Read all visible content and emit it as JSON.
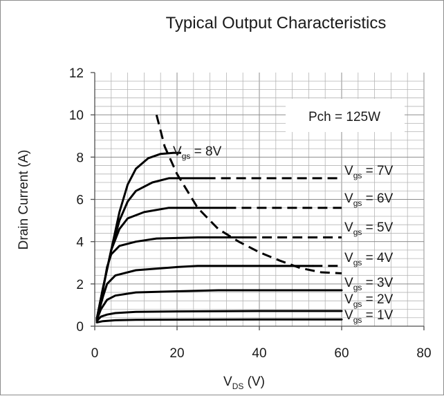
{
  "chart_data": {
    "type": "line",
    "title": "Typical Output Characteristics",
    "xlabel_main": "V",
    "xlabel_sub": "DS",
    "xlabel_unit": " (V)",
    "ylabel": "Drain Current (A)",
    "xlim": [
      0,
      80
    ],
    "ylim": [
      0,
      12
    ],
    "xticks": [
      "0",
      "20",
      "40",
      "60",
      "80"
    ],
    "yticks": [
      "0",
      "2",
      "4",
      "6",
      "8",
      "10",
      "12"
    ],
    "grid": true,
    "annotation": "Pch = 125W",
    "series": [
      {
        "label_main": "V",
        "label_sub": "gs",
        "label_value": " = 1V",
        "solid": [
          [
            0.5,
            0.18
          ],
          [
            2,
            0.24
          ],
          [
            5,
            0.28
          ],
          [
            10,
            0.3
          ],
          [
            20,
            0.31
          ],
          [
            40,
            0.32
          ],
          [
            60,
            0.32
          ]
        ],
        "dashed": []
      },
      {
        "label_main": "V",
        "label_sub": "gs",
        "label_value": " = 2V",
        "solid": [
          [
            0.5,
            0.25
          ],
          [
            1.5,
            0.45
          ],
          [
            3,
            0.55
          ],
          [
            5,
            0.62
          ],
          [
            10,
            0.68
          ],
          [
            20,
            0.7
          ],
          [
            40,
            0.72
          ],
          [
            60,
            0.72
          ]
        ],
        "dashed": []
      },
      {
        "label_main": "V",
        "label_sub": "gs",
        "label_value": " = 3V",
        "solid": [
          [
            0.5,
            0.3
          ],
          [
            1.5,
            0.8
          ],
          [
            3,
            1.25
          ],
          [
            5,
            1.45
          ],
          [
            10,
            1.6
          ],
          [
            20,
            1.65
          ],
          [
            30,
            1.7
          ],
          [
            60,
            1.7
          ]
        ],
        "dashed": []
      },
      {
        "label_main": "V",
        "label_sub": "gs",
        "label_value": " = 4V",
        "solid": [
          [
            0.5,
            0.35
          ],
          [
            2,
            1.4
          ],
          [
            3,
            2.0
          ],
          [
            5,
            2.4
          ],
          [
            10,
            2.65
          ],
          [
            20,
            2.8
          ],
          [
            25,
            2.85
          ],
          [
            53,
            2.85
          ]
        ],
        "dashed": [
          [
            53,
            2.85
          ],
          [
            60,
            2.85
          ]
        ]
      },
      {
        "label_main": "V",
        "label_sub": "gs",
        "label_value": " = 5V",
        "solid": [
          [
            0.5,
            0.35
          ],
          [
            2,
            1.7
          ],
          [
            3,
            2.8
          ],
          [
            4,
            3.4
          ],
          [
            6,
            3.8
          ],
          [
            10,
            4.0
          ],
          [
            15,
            4.15
          ],
          [
            25,
            4.2
          ],
          [
            37,
            4.2
          ]
        ],
        "dashed": [
          [
            37,
            4.2
          ],
          [
            60,
            4.2
          ]
        ]
      },
      {
        "label_main": "V",
        "label_sub": "gs",
        "label_value": " = 6V",
        "solid": [
          [
            0.5,
            0.35
          ],
          [
            2,
            1.8
          ],
          [
            4,
            3.6
          ],
          [
            6,
            4.6
          ],
          [
            8,
            5.1
          ],
          [
            12,
            5.4
          ],
          [
            18,
            5.6
          ],
          [
            32,
            5.6
          ]
        ],
        "dashed": [
          [
            32,
            5.6
          ],
          [
            60,
            5.6
          ]
        ]
      },
      {
        "label_main": "V",
        "label_sub": "gs",
        "label_value": " = 7V",
        "solid": [
          [
            0.5,
            0.35
          ],
          [
            2,
            1.8
          ],
          [
            4,
            3.6
          ],
          [
            6,
            5.0
          ],
          [
            8,
            5.9
          ],
          [
            10,
            6.4
          ],
          [
            14,
            6.8
          ],
          [
            18,
            7.0
          ],
          [
            27,
            7.0
          ]
        ],
        "dashed": [
          [
            27,
            7.0
          ],
          [
            60,
            7.0
          ]
        ]
      },
      {
        "label_main": "V",
        "label_sub": "gs",
        "label_value": " = 8V",
        "solid": [
          [
            0.5,
            0.35
          ],
          [
            2,
            1.8
          ],
          [
            4,
            3.6
          ],
          [
            6,
            5.4
          ],
          [
            8,
            6.7
          ],
          [
            10,
            7.45
          ],
          [
            13,
            7.95
          ],
          [
            16,
            8.15
          ],
          [
            19,
            8.2
          ]
        ],
        "dashed": [
          [
            19,
            8.2
          ],
          [
            21,
            8.2
          ]
        ]
      }
    ],
    "power_limit_curve": [
      [
        15,
        10.0
      ],
      [
        17,
        8.5
      ],
      [
        20,
        7.2
      ],
      [
        25,
        5.6
      ],
      [
        30,
        4.6
      ],
      [
        35,
        4.0
      ],
      [
        40,
        3.5
      ],
      [
        45,
        3.1
      ],
      [
        50,
        2.75
      ],
      [
        55,
        2.55
      ],
      [
        60,
        2.5
      ]
    ]
  }
}
